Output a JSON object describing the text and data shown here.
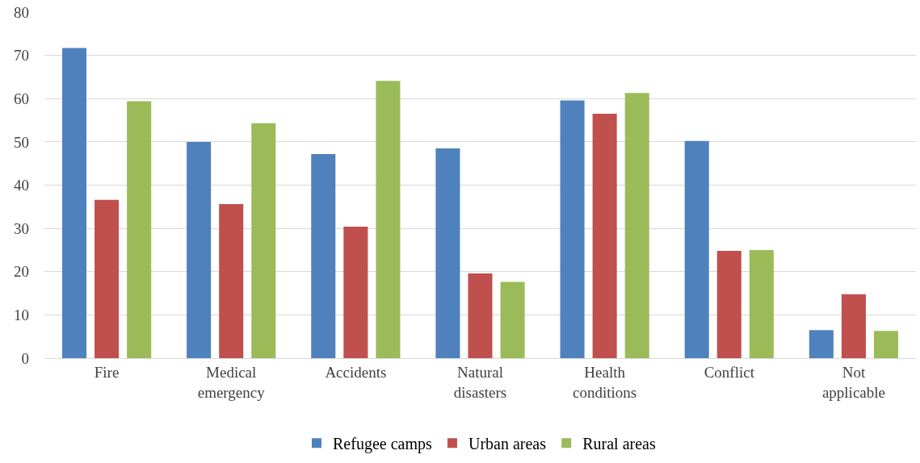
{
  "chart_data": {
    "type": "bar",
    "categories": [
      "Fire",
      "Medical emergency",
      "Accidents",
      "Natural disasters",
      "Health conditions",
      "Conflict",
      "Not applicable"
    ],
    "series": [
      {
        "name": "Refugee camps",
        "color": "#4f81bd",
        "values": [
          71.7,
          50,
          47.2,
          48.5,
          59.6,
          50.2,
          6.5
        ]
      },
      {
        "name": "Urban areas",
        "color": "#c0504d",
        "values": [
          36.6,
          35.6,
          30.4,
          19.6,
          56.5,
          24.8,
          14.8
        ]
      },
      {
        "name": "Rural areas",
        "color": "#9bbb59",
        "values": [
          59.4,
          54.3,
          64.1,
          17.6,
          61.3,
          25,
          6.3
        ]
      }
    ],
    "ylim": [
      0,
      80
    ],
    "yticks": [
      0,
      10,
      20,
      30,
      40,
      50,
      60,
      70,
      80
    ],
    "grid": "y",
    "legend": "bottom"
  }
}
